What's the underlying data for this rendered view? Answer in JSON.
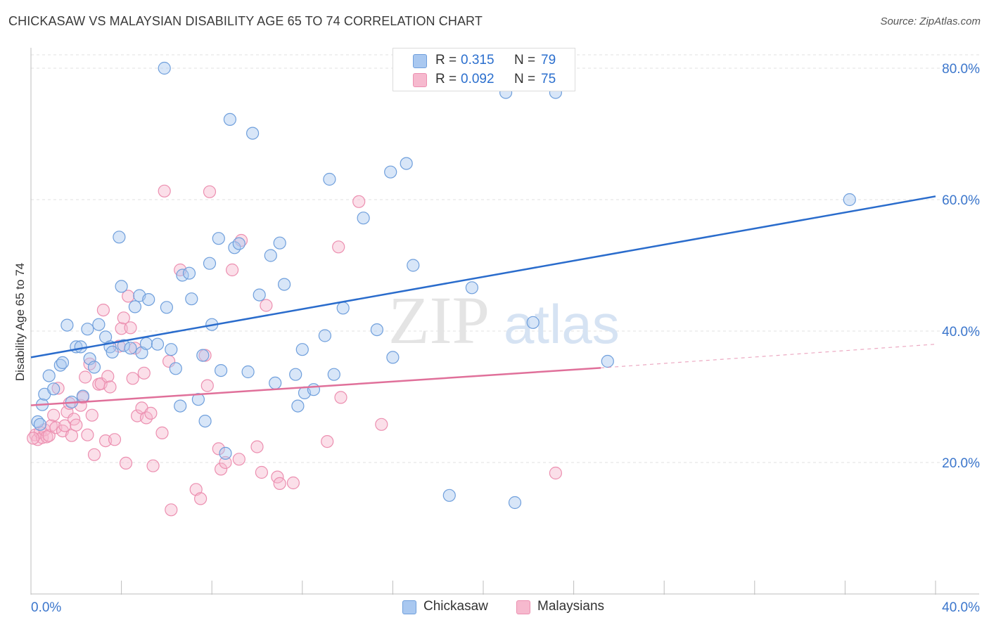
{
  "header": {
    "title": "CHICKASAW VS MALAYSIAN DISABILITY AGE 65 TO 74 CORRELATION CHART",
    "source": "Source: ZipAtlas.com"
  },
  "watermark": {
    "part1": "ZIP",
    "part2": "atlas"
  },
  "legend_top": {
    "rows": [
      {
        "r_label": "R =",
        "r_value": "0.315",
        "n_label": "N =",
        "n_value": "79",
        "color": "#7aaae8"
      },
      {
        "r_label": "R =",
        "r_value": "0.092",
        "n_label": "N =",
        "n_value": "75",
        "color": "#f08db0"
      }
    ]
  },
  "legend_bottom": {
    "items": [
      {
        "label": "Chickasaw",
        "color": "#7aaae8"
      },
      {
        "label": "Malaysians",
        "color": "#f08db0"
      }
    ]
  },
  "colors": {
    "blue_fill": "#a9c8f0",
    "blue_stroke": "#6f9fdc",
    "blue_line": "#2a6ccc",
    "pink_fill": "#f6b9ce",
    "pink_stroke": "#ec8fb0",
    "pink_line": "#e0709a",
    "tick_text": "#3b76cc",
    "grid": "#e2e2e2"
  },
  "chart_data": {
    "type": "scatter",
    "title": "CHICKASAW VS MALAYSIAN DISABILITY AGE 65 TO 74 CORRELATION CHART",
    "xlabel": "",
    "ylabel": "Disability Age 65 to 74",
    "xlim": [
      0,
      40
    ],
    "ylim": [
      0,
      80
    ],
    "x_tick_labels": [
      "0.0%",
      "40.0%"
    ],
    "y_ticks": [
      20,
      40,
      60,
      80
    ],
    "y_tick_labels": [
      "20.0%",
      "40.0%",
      "60.0%",
      "80.0%"
    ],
    "grid": true,
    "legend_position": "top-center",
    "series": [
      {
        "name": "Chickasaw",
        "r": 0.315,
        "n": 79,
        "trend": {
          "x": [
            0,
            40
          ],
          "y": [
            36.0,
            60.5
          ],
          "style": "solid"
        },
        "points": [
          [
            0.3,
            26.2
          ],
          [
            0.5,
            28.8
          ],
          [
            0.6,
            30.4
          ],
          [
            0.8,
            33.2
          ],
          [
            1.0,
            31.2
          ],
          [
            1.3,
            34.8
          ],
          [
            1.4,
            35.2
          ],
          [
            1.6,
            40.9
          ],
          [
            1.8,
            29.2
          ],
          [
            2.0,
            37.6
          ],
          [
            2.2,
            37.6
          ],
          [
            2.3,
            30.1
          ],
          [
            2.5,
            40.3
          ],
          [
            2.6,
            35.8
          ],
          [
            2.8,
            34.5
          ],
          [
            3.0,
            41.0
          ],
          [
            3.3,
            39.1
          ],
          [
            3.5,
            37.6
          ],
          [
            3.6,
            36.8
          ],
          [
            3.9,
            54.3
          ],
          [
            4.0,
            46.8
          ],
          [
            4.1,
            37.8
          ],
          [
            4.4,
            37.4
          ],
          [
            4.6,
            43.7
          ],
          [
            4.8,
            45.4
          ],
          [
            4.9,
            36.7
          ],
          [
            5.1,
            38.1
          ],
          [
            5.2,
            44.8
          ],
          [
            5.6,
            38.0
          ],
          [
            6.0,
            43.6
          ],
          [
            6.2,
            37.2
          ],
          [
            6.4,
            34.3
          ],
          [
            6.6,
            28.6
          ],
          [
            6.7,
            48.5
          ],
          [
            7.0,
            48.8
          ],
          [
            7.1,
            44.9
          ],
          [
            7.4,
            29.6
          ],
          [
            7.6,
            36.3
          ],
          [
            7.7,
            26.3
          ],
          [
            7.9,
            50.3
          ],
          [
            8.0,
            41.0
          ],
          [
            8.3,
            54.1
          ],
          [
            8.4,
            34.0
          ],
          [
            8.6,
            21.4
          ],
          [
            8.8,
            72.2
          ],
          [
            9.0,
            52.7
          ],
          [
            9.2,
            53.3
          ],
          [
            9.6,
            33.8
          ],
          [
            9.8,
            70.1
          ],
          [
            10.1,
            45.5
          ],
          [
            10.6,
            51.5
          ],
          [
            10.8,
            32.1
          ],
          [
            11.0,
            53.4
          ],
          [
            11.2,
            47.1
          ],
          [
            11.7,
            33.4
          ],
          [
            11.8,
            28.6
          ],
          [
            12.0,
            37.2
          ],
          [
            12.1,
            30.6
          ],
          [
            12.5,
            31.1
          ],
          [
            13.0,
            39.3
          ],
          [
            13.2,
            63.1
          ],
          [
            13.4,
            33.4
          ],
          [
            13.8,
            43.5
          ],
          [
            14.7,
            57.2
          ],
          [
            15.3,
            40.2
          ],
          [
            15.9,
            64.2
          ],
          [
            16.0,
            36.0
          ],
          [
            16.6,
            65.5
          ],
          [
            16.9,
            50.0
          ],
          [
            18.5,
            15.0
          ],
          [
            19.5,
            46.6
          ],
          [
            21.0,
            76.3
          ],
          [
            21.4,
            13.9
          ],
          [
            22.2,
            41.3
          ],
          [
            23.2,
            76.3
          ],
          [
            25.5,
            35.4
          ],
          [
            36.2,
            60.0
          ],
          [
            5.9,
            80.0
          ],
          [
            0.4,
            25.8
          ]
        ]
      },
      {
        "name": "Malaysians",
        "r": 0.092,
        "n": 75,
        "trend": {
          "x": [
            0,
            25.2
          ],
          "y": [
            28.7,
            34.4
          ],
          "style": "solid",
          "dashed_to": {
            "x": 40,
            "y": 38.0
          }
        },
        "points": [
          [
            0.2,
            24.2
          ],
          [
            0.3,
            23.5
          ],
          [
            0.4,
            24.6
          ],
          [
            0.5,
            23.8
          ],
          [
            0.6,
            25.0
          ],
          [
            0.7,
            23.9
          ],
          [
            0.8,
            24.1
          ],
          [
            0.9,
            25.6
          ],
          [
            1.0,
            27.2
          ],
          [
            1.1,
            25.3
          ],
          [
            1.2,
            31.3
          ],
          [
            1.4,
            24.8
          ],
          [
            1.5,
            25.6
          ],
          [
            1.6,
            27.7
          ],
          [
            1.7,
            29.0
          ],
          [
            1.8,
            24.1
          ],
          [
            1.9,
            26.6
          ],
          [
            2.0,
            25.7
          ],
          [
            2.2,
            28.7
          ],
          [
            2.3,
            29.9
          ],
          [
            2.4,
            33.0
          ],
          [
            2.5,
            24.2
          ],
          [
            2.6,
            35.0
          ],
          [
            2.7,
            27.2
          ],
          [
            2.8,
            21.2
          ],
          [
            3.0,
            31.9
          ],
          [
            3.1,
            32.0
          ],
          [
            3.2,
            43.2
          ],
          [
            3.3,
            23.3
          ],
          [
            3.4,
            33.1
          ],
          [
            3.5,
            31.5
          ],
          [
            3.7,
            23.5
          ],
          [
            3.9,
            37.7
          ],
          [
            4.0,
            40.4
          ],
          [
            4.1,
            42.0
          ],
          [
            4.2,
            19.9
          ],
          [
            4.3,
            45.3
          ],
          [
            4.4,
            40.5
          ],
          [
            4.5,
            32.8
          ],
          [
            4.6,
            37.4
          ],
          [
            4.7,
            27.1
          ],
          [
            4.9,
            28.3
          ],
          [
            5.0,
            33.6
          ],
          [
            5.1,
            26.8
          ],
          [
            5.3,
            27.5
          ],
          [
            5.4,
            19.5
          ],
          [
            5.8,
            24.5
          ],
          [
            5.9,
            61.3
          ],
          [
            6.1,
            35.4
          ],
          [
            6.2,
            12.8
          ],
          [
            6.6,
            49.3
          ],
          [
            7.3,
            15.9
          ],
          [
            7.5,
            14.5
          ],
          [
            7.7,
            36.3
          ],
          [
            7.8,
            31.7
          ],
          [
            7.9,
            61.2
          ],
          [
            8.3,
            22.1
          ],
          [
            8.4,
            19.0
          ],
          [
            8.6,
            20.0
          ],
          [
            8.9,
            49.3
          ],
          [
            9.2,
            20.5
          ],
          [
            9.3,
            53.8
          ],
          [
            10.0,
            22.4
          ],
          [
            10.2,
            18.5
          ],
          [
            10.4,
            43.9
          ],
          [
            10.9,
            17.8
          ],
          [
            11.0,
            16.8
          ],
          [
            11.6,
            16.9
          ],
          [
            13.1,
            23.2
          ],
          [
            13.6,
            52.8
          ],
          [
            13.7,
            29.9
          ],
          [
            14.5,
            59.7
          ],
          [
            15.5,
            25.8
          ],
          [
            23.2,
            18.4
          ],
          [
            0.1,
            23.7
          ]
        ]
      }
    ]
  }
}
